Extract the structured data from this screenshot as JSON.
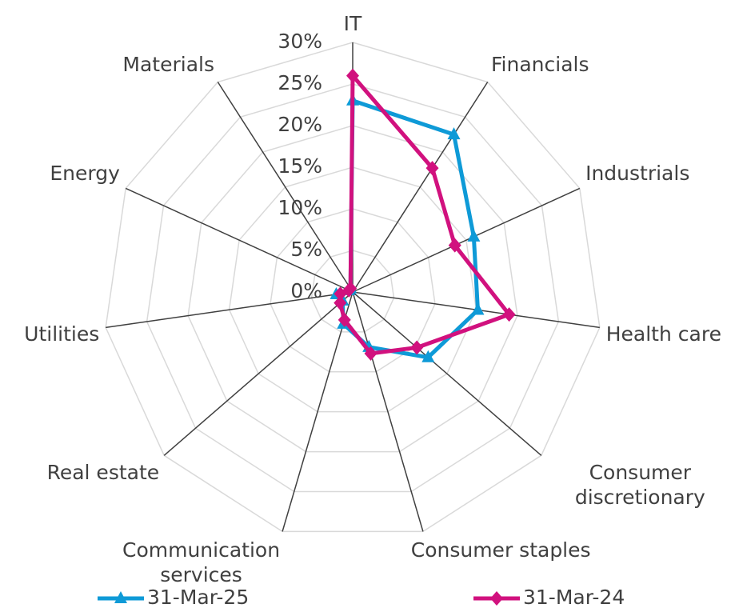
{
  "chart_data": {
    "type": "radar",
    "categories": [
      "IT",
      "Financials",
      "Industrials",
      "Health care",
      "Consumer discretionary",
      "Consumer staples",
      "Communication services",
      "Real estate",
      "Utilities",
      "Energy",
      "Materials"
    ],
    "series": [
      {
        "name": "31-Mar-25",
        "color": "#0e9ad7",
        "marker": "triangle",
        "values": [
          23,
          22.5,
          16,
          15.2,
          12,
          6.9,
          4,
          1.6,
          2,
          0.5,
          0.5
        ]
      },
      {
        "name": "31-Mar-24",
        "color": "#d1117e",
        "marker": "diamond",
        "values": [
          26,
          17.7,
          13.5,
          19,
          10.2,
          7.7,
          3.5,
          2,
          1.5,
          0.5,
          0.5
        ]
      }
    ],
    "ylim": [
      0,
      30
    ],
    "yticks": [
      {
        "value": 0,
        "label": "0%"
      },
      {
        "value": 5,
        "label": "5%"
      },
      {
        "value": 10,
        "label": "10%"
      },
      {
        "value": 15,
        "label": "15%"
      },
      {
        "value": 20,
        "label": "20%"
      },
      {
        "value": 25,
        "label": "25%"
      },
      {
        "value": 30,
        "label": "30%"
      }
    ],
    "grid": true,
    "legend": "bottom"
  }
}
